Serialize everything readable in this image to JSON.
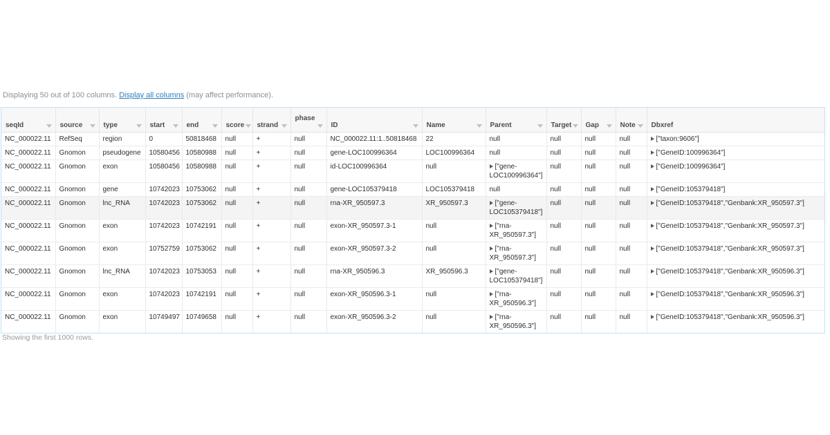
{
  "notice": {
    "prefix": "Displaying 50 out of 100 columns.",
    "link": "Display all columns",
    "suffix": "(may affect performance)."
  },
  "table": {
    "columns": [
      {
        "label": "seqId",
        "sortable": true
      },
      {
        "label": "source",
        "sortable": true
      },
      {
        "label": "type",
        "sortable": true
      },
      {
        "label": "start",
        "sortable": true
      },
      {
        "label": "end",
        "sortable": true
      },
      {
        "label": "score",
        "sortable": true
      },
      {
        "label": "strand",
        "sortable": true
      },
      {
        "label": "phase",
        "sortable": true
      },
      {
        "label": "ID",
        "sortable": true
      },
      {
        "label": "Name",
        "sortable": true
      },
      {
        "label": "Parent",
        "sortable": true
      },
      {
        "label": "Target",
        "sortable": true
      },
      {
        "label": "Gap",
        "sortable": true
      },
      {
        "label": "Note",
        "sortable": true
      },
      {
        "label": "Dbxref",
        "sortable": false
      }
    ],
    "rows": [
      [
        "NC_000022.11",
        "RefSeq",
        "region",
        "0",
        "50818468",
        "null",
        "+",
        "null",
        "NC_000022.11:1..50818468",
        "22",
        "null",
        "null",
        "null",
        "null",
        "[\"taxon:9606\"]"
      ],
      [
        "NC_000022.11",
        "Gnomon",
        "pseudogene",
        "10580456",
        "10580988",
        "null",
        "+",
        "null",
        "gene-LOC100996364",
        "LOC100996364",
        "null",
        "null",
        "null",
        "null",
        "[\"GeneID:100996364\"]"
      ],
      [
        "NC_000022.11",
        "Gnomon",
        "exon",
        "10580456",
        "10580988",
        "null",
        "+",
        "null",
        "id-LOC100996364",
        "null",
        "[\"gene-LOC100996364\"]",
        "null",
        "null",
        "null",
        "[\"GeneID:100996364\"]"
      ],
      [
        "NC_000022.11",
        "Gnomon",
        "gene",
        "10742023",
        "10753062",
        "null",
        "+",
        "null",
        "gene-LOC105379418",
        "LOC105379418",
        "null",
        "null",
        "null",
        "null",
        "[\"GeneID:105379418\"]"
      ],
      [
        "NC_000022.11",
        "Gnomon",
        "lnc_RNA",
        "10742023",
        "10753062",
        "null",
        "+",
        "null",
        "rna-XR_950597.3",
        "XR_950597.3",
        "[\"gene-LOC105379418\"]",
        "null",
        "null",
        "null",
        "[\"GeneID:105379418\",\"Genbank:XR_950597.3\"]"
      ],
      [
        "NC_000022.11",
        "Gnomon",
        "exon",
        "10742023",
        "10742191",
        "null",
        "+",
        "null",
        "exon-XR_950597.3-1",
        "null",
        "[\"rna-XR_950597.3\"]",
        "null",
        "null",
        "null",
        "[\"GeneID:105379418\",\"Genbank:XR_950597.3\"]"
      ],
      [
        "NC_000022.11",
        "Gnomon",
        "exon",
        "10752759",
        "10753062",
        "null",
        "+",
        "null",
        "exon-XR_950597.3-2",
        "null",
        "[\"rna-XR_950597.3\"]",
        "null",
        "null",
        "null",
        "[\"GeneID:105379418\",\"Genbank:XR_950597.3\"]"
      ],
      [
        "NC_000022.11",
        "Gnomon",
        "lnc_RNA",
        "10742023",
        "10753053",
        "null",
        "+",
        "null",
        "rna-XR_950596.3",
        "XR_950596.3",
        "[\"gene-LOC105379418\"]",
        "null",
        "null",
        "null",
        "[\"GeneID:105379418\",\"Genbank:XR_950596.3\"]"
      ],
      [
        "NC_000022.11",
        "Gnomon",
        "exon",
        "10742023",
        "10742191",
        "null",
        "+",
        "null",
        "exon-XR_950596.3-1",
        "null",
        "[\"rna-XR_950596.3\"]",
        "null",
        "null",
        "null",
        "[\"GeneID:105379418\",\"Genbank:XR_950596.3\"]"
      ],
      [
        "NC_000022.11",
        "Gnomon",
        "exon",
        "10749497",
        "10749658",
        "null",
        "+",
        "null",
        "exon-XR_950596.3-2",
        "null",
        "[\"rna-XR_950596.3\"]",
        "null",
        "null",
        "null",
        "[\"GeneID:105379418\",\"Genbank:XR_950596.3\"]"
      ]
    ],
    "highlighted_row_index": 4
  },
  "footer": {
    "text": "Showing the first 1000 rows."
  },
  "colors": {
    "link": "#2d7ebf",
    "table_border": "#c3e1f2",
    "header_bg": "#f7f7f7",
    "highlight_row_bg": "#f4f4f4"
  }
}
